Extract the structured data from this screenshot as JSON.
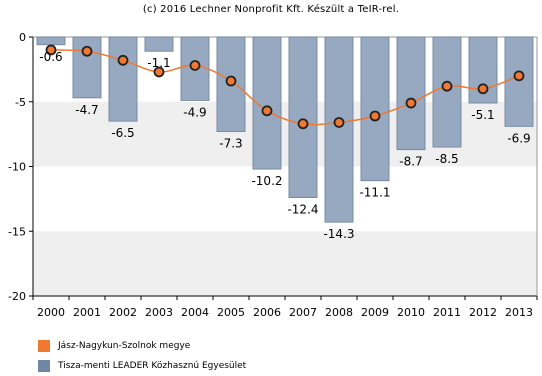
{
  "copyright": "(c) 2016 Lechner Nonprofit Kft. Készült a TeIR-rel.",
  "colors": {
    "bar_fill": "#97a9c0",
    "bar_stroke": "#6b7f99",
    "line": "#f07830",
    "band": "#efefef",
    "marker_fill": "#f07830",
    "marker_stroke": "#222222"
  },
  "chart_data": {
    "type": "bar",
    "categories": [
      "2000",
      "2001",
      "2002",
      "2003",
      "2004",
      "2005",
      "2006",
      "2007",
      "2008",
      "2009",
      "2010",
      "2011",
      "2012",
      "2013"
    ],
    "ylim": [
      -20,
      0
    ],
    "yticks": [
      0,
      -5,
      -10,
      -15,
      -20
    ],
    "series": [
      {
        "name": "Tisza-menti LEADER Közhasznú Egyesület",
        "type": "bar",
        "color": "#97a9c0",
        "values": [
          -0.6,
          -4.7,
          -6.5,
          -1.1,
          -4.9,
          -7.3,
          -10.2,
          -12.4,
          -14.3,
          -11.1,
          -8.7,
          -8.5,
          -5.1,
          -6.9
        ]
      },
      {
        "name": "Jász-Nagykun-Szolnok megye",
        "type": "line",
        "color": "#f07830",
        "values": [
          -1.0,
          -1.1,
          -1.8,
          -2.7,
          -2.2,
          -3.4,
          -5.7,
          -6.7,
          -6.6,
          -6.1,
          -5.1,
          -3.8,
          -4.0,
          -3.0
        ]
      }
    ],
    "bar_labels": [
      "-0.6",
      "-4.7",
      "-6.5",
      "-1.1",
      "-4.9",
      "-7.3",
      "-10.2",
      "-12.4",
      "-14.3",
      "-11.1",
      "-8.7",
      "-8.5",
      "-5.1",
      "-6.9"
    ],
    "ytick_labels": [
      "0",
      "-5",
      "-10",
      "-15",
      "-20"
    ],
    "legend_position": "bottom-left",
    "grid": false
  },
  "legend": [
    {
      "label": "Jász-Nagykun-Szolnok megye",
      "color": "#f07830"
    },
    {
      "label": "Tisza-menti LEADER Közhasznú Egyesület",
      "color": "#6f86a4"
    }
  ]
}
